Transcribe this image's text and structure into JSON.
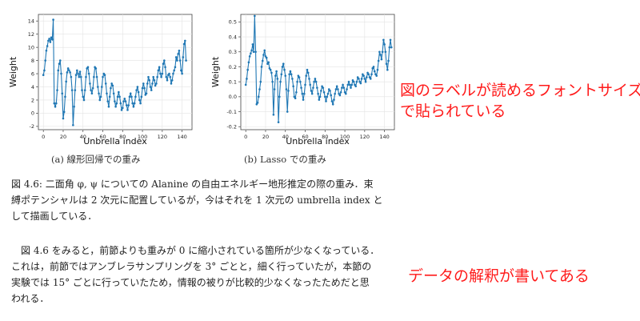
{
  "chart_data": [
    {
      "type": "line",
      "subcaption": "(a) 線形回帰での重み",
      "xlabel": "Unbrella index",
      "ylabel": "Weight",
      "xlim": [
        -5,
        150
      ],
      "ylim": [
        -2.5,
        15
      ],
      "xticks": [
        "0",
        "20",
        "40",
        "60",
        "80",
        "100",
        "120",
        "140"
      ],
      "yticks": [
        "-2",
        "0",
        "2",
        "4",
        "6",
        "8",
        "10",
        "12",
        "14"
      ],
      "grid": true,
      "color": "#1f77b4",
      "values": [
        5.8,
        6.5,
        8.0,
        9.5,
        10.2,
        11.0,
        11.3,
        10.8,
        11.5,
        11.2,
        14.2,
        1.5,
        1.0,
        1.5,
        3.5,
        6.5,
        7.5,
        8.0,
        6.0,
        3.0,
        -0.8,
        0.2,
        2.5,
        4.8,
        6.2,
        6.8,
        6.5,
        6.2,
        5.5,
        3.5,
        -1.8,
        1.0,
        3.5,
        5.8,
        6.5,
        6.0,
        5.5,
        6.3,
        5.5,
        3.5,
        2.5,
        2.0,
        3.5,
        5.5,
        6.8,
        7.0,
        6.0,
        4.5,
        3.5,
        3.0,
        3.8,
        5.5,
        7.0,
        6.8,
        5.5,
        4.0,
        3.0,
        2.0,
        2.5,
        4.0,
        5.5,
        6.0,
        5.8,
        4.5,
        3.0,
        1.8,
        1.0,
        2.5,
        3.8,
        4.5,
        4.2,
        3.0,
        1.8,
        1.0,
        1.5,
        2.5,
        3.2,
        2.5,
        1.5,
        0.5,
        0.8,
        1.8,
        2.2,
        1.8,
        1.2,
        0.5,
        1.2,
        2.5,
        3.0,
        2.5,
        1.5,
        1.0,
        1.5,
        2.5,
        3.5,
        4.0,
        3.2,
        2.0,
        1.5,
        2.5,
        3.8,
        4.5,
        3.8,
        2.8,
        3.0,
        4.5,
        5.5,
        5.0,
        4.0,
        3.5,
        4.5,
        5.5,
        5.0,
        4.2,
        4.5,
        5.5,
        6.5,
        7.0,
        6.0,
        5.5,
        6.0,
        7.5,
        8.0,
        7.0,
        5.5,
        5.0,
        5.8,
        6.0,
        5.5,
        4.5,
        5.0,
        6.0,
        6.5,
        7.0,
        8.5,
        8.0,
        9.0,
        9.5,
        8.0,
        6.5,
        6.0,
        8.5,
        10.5,
        11.0,
        8.0
      ]
    },
    {
      "type": "line",
      "subcaption": "(b) Lasso での重み",
      "xlabel": "Unbrella index",
      "ylabel": "Weight",
      "xlim": [
        -5,
        150
      ],
      "ylim": [
        -0.22,
        0.55
      ],
      "xticks": [
        "0",
        "20",
        "40",
        "60",
        "80",
        "100",
        "120",
        "140"
      ],
      "yticks": [
        "-0.2",
        "-0.1",
        "0.0",
        "0.1",
        "0.2",
        "0.3",
        "0.4",
        "0.5"
      ],
      "grid": true,
      "color": "#1f77b4",
      "values": [
        0.08,
        0.12,
        0.18,
        0.23,
        0.27,
        0.29,
        0.31,
        0.35,
        0.3,
        0.54,
        0.3,
        -0.05,
        -0.04,
        0.0,
        0.05,
        0.1,
        0.2,
        0.24,
        0.28,
        0.31,
        0.27,
        0.26,
        0.22,
        0.23,
        0.19,
        0.18,
        0.16,
        0.1,
        -0.12,
        0.05,
        0.14,
        0.17,
        0.12,
        -0.17,
        0.0,
        0.1,
        0.15,
        0.2,
        0.22,
        0.18,
        0.14,
        0.05,
        -0.1,
        0.04,
        0.15,
        0.17,
        0.15,
        0.12,
        0.07,
        0.0,
        -0.01,
        0.03,
        0.1,
        0.14,
        0.13,
        0.1,
        0.06,
        0.02,
        -0.02,
        0.02,
        0.08,
        0.14,
        0.18,
        0.16,
        0.12,
        0.08,
        0.04,
        0.02,
        0.06,
        0.1,
        0.12,
        0.1,
        0.06,
        0.02,
        -0.02,
        0.0,
        0.04,
        0.07,
        0.06,
        0.03,
        0.0,
        -0.03,
        0.0,
        0.02,
        0.05,
        0.04,
        0.01,
        -0.03,
        -0.05,
        -0.02,
        0.02,
        0.05,
        0.07,
        0.05,
        0.02,
        0.01,
        0.03,
        0.06,
        0.08,
        0.06,
        0.03,
        0.02,
        0.05,
        0.08,
        0.1,
        0.08,
        0.06,
        0.08,
        0.11,
        0.1,
        0.08,
        0.07,
        0.1,
        0.13,
        0.12,
        0.1,
        0.09,
        0.12,
        0.15,
        0.14,
        0.12,
        0.1,
        0.13,
        0.16,
        0.15,
        0.13,
        0.12,
        0.15,
        0.19,
        0.2,
        0.17,
        0.15,
        0.14,
        0.18,
        0.24,
        0.3,
        0.28,
        0.25,
        0.3,
        0.38,
        0.35,
        0.3,
        0.22,
        0.18,
        0.24,
        0.33,
        0.38,
        0.33
      ]
    }
  ],
  "figure_caption": {
    "lines": [
      "図 4.6:  二面角 φ, ψ についての Alanine の自由エネルギー地形推定の際の重み．束",
      "縛ポテンシャルは 2 次元に配置しているが，今はそれを 1 次元の umbrella index と",
      "して描画している．"
    ]
  },
  "body_text": {
    "lines": [
      "図 4.6 をみると，前節よりも重みが 0 に縮小されている箇所が少なくなっている．",
      "これは，前節ではアンブレラサンプリングを 3° ごとと，細く行っていたが，本節の",
      "実験では 15° ごとに行っていたため，情報の被りが比較的少なくなったためだと思",
      "われる．"
    ]
  },
  "annotations": {
    "note_1_lines": [
      "図のラベルが読めるフォントサイズ",
      "で貼られている"
    ],
    "note_2_lines": [
      "データの解釈が書いてある"
    ],
    "color": "#ff1a1a"
  }
}
